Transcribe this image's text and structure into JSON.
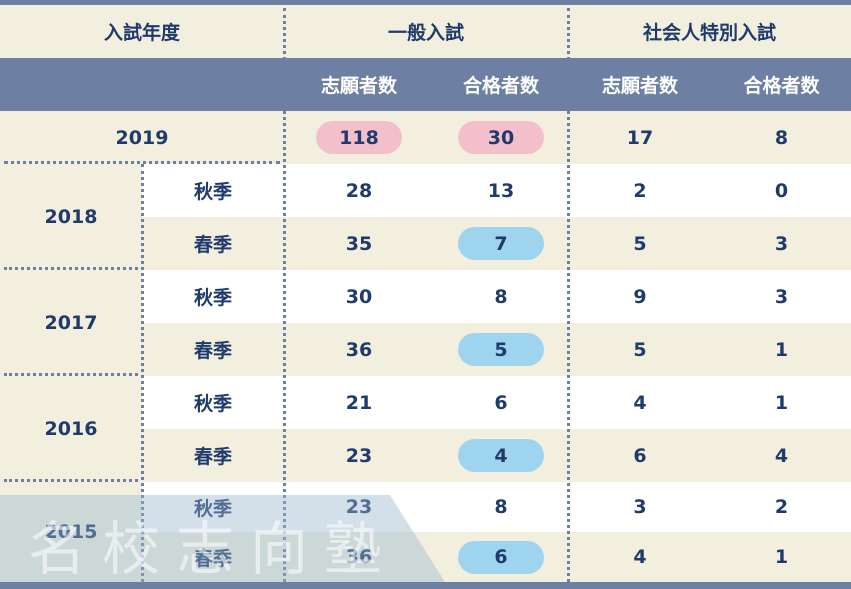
{
  "header": {
    "year_label": "入試年度",
    "general_exam": "一般入試",
    "special_exam": "社会人特別入試",
    "applicants": "志願者数",
    "passed": "合格者数"
  },
  "rows": [
    {
      "year": "2019",
      "season": "",
      "gen_applicants": "118",
      "gen_passed": "30",
      "sp_applicants": "17",
      "sp_passed": "8"
    },
    {
      "year": "2018",
      "season": "秋季",
      "gen_applicants": "28",
      "gen_passed": "13",
      "sp_applicants": "2",
      "sp_passed": "0"
    },
    {
      "year": "2018",
      "season": "春季",
      "gen_applicants": "35",
      "gen_passed": "7",
      "sp_applicants": "5",
      "sp_passed": "3"
    },
    {
      "year": "2017",
      "season": "秋季",
      "gen_applicants": "30",
      "gen_passed": "8",
      "sp_applicants": "9",
      "sp_passed": "3"
    },
    {
      "year": "2017",
      "season": "春季",
      "gen_applicants": "36",
      "gen_passed": "5",
      "sp_applicants": "5",
      "sp_passed": "1"
    },
    {
      "year": "2016",
      "season": "秋季",
      "gen_applicants": "21",
      "gen_passed": "6",
      "sp_applicants": "4",
      "sp_passed": "1"
    },
    {
      "year": "2016",
      "season": "春季",
      "gen_applicants": "23",
      "gen_passed": "4",
      "sp_applicants": "6",
      "sp_passed": "4"
    },
    {
      "year": "2015",
      "season": "秋季",
      "gen_applicants": "23",
      "gen_passed": "8",
      "sp_applicants": "3",
      "sp_passed": "2"
    },
    {
      "year": "2015",
      "season": "春季",
      "gen_applicants": "36",
      "gen_passed": "6",
      "sp_applicants": "4",
      "sp_passed": "1"
    }
  ],
  "years": [
    "2018",
    "2017",
    "2016",
    "2015"
  ],
  "watermark": "名校志向塾",
  "colors": {
    "navy": "#6d7fa3",
    "cream": "#f3efdf",
    "text": "#1f3a6b",
    "highlight_pink": "#f2bfcb",
    "highlight_blue": "#9fd4ef"
  }
}
